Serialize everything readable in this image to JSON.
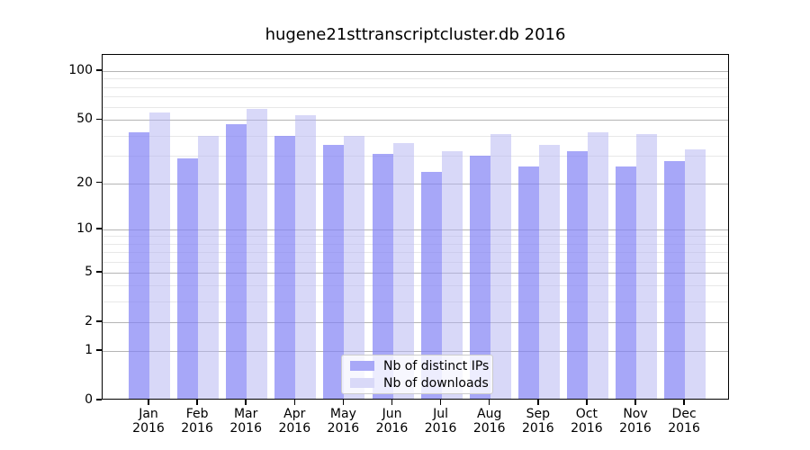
{
  "chart_data": {
    "type": "bar",
    "title": "hugene21sttranscriptcluster.db 2016",
    "categories": [
      "Jan",
      "Feb",
      "Mar",
      "Apr",
      "May",
      "Jun",
      "Jul",
      "Aug",
      "Sep",
      "Oct",
      "Nov",
      "Dec"
    ],
    "year": "2016",
    "series": [
      {
        "name": "Nb of distinct IPs",
        "color": "#8282f5",
        "opacity": 0.7,
        "rendered_color": "#a8a8f7",
        "values": [
          41,
          28,
          46,
          39,
          34,
          30,
          23,
          29,
          25,
          31,
          25,
          27
        ]
      },
      {
        "name": "Nb of downloads",
        "color": "#b4b4f1",
        "opacity": 0.52,
        "rendered_color": "#d9d9f8",
        "values": [
          54,
          39,
          57,
          52,
          39,
          35,
          31,
          40,
          34,
          41,
          40,
          32
        ]
      }
    ],
    "yscale": "log1p",
    "ylim": [
      0,
      126
    ],
    "y_ticks": [
      0,
      1,
      2,
      5,
      10,
      20,
      50,
      100
    ],
    "y_minor_gridlines": [
      3,
      4,
      6,
      7,
      8,
      9,
      30,
      40,
      60,
      70,
      80,
      90
    ],
    "grid": true,
    "legend_position": "lower center",
    "colors": {
      "frame": "#000000",
      "grid_major": "#b5b5b5",
      "grid_minor": "#e8e8e8",
      "legend_border": "#cccccc"
    }
  }
}
